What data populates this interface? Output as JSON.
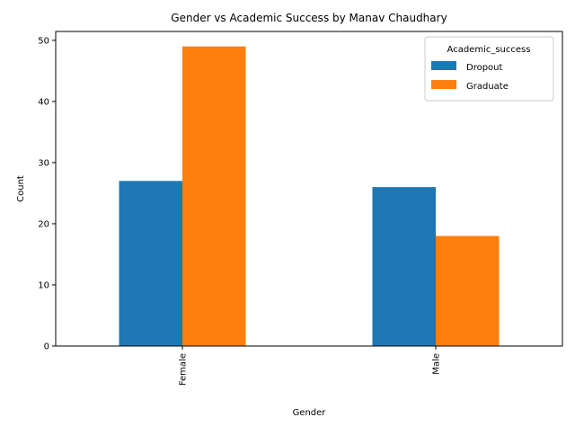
{
  "chart_data": {
    "type": "bar",
    "title": "Gender vs Academic Success by Manav Chaudhary",
    "xlabel": "Gender",
    "ylabel": "Count",
    "categories": [
      "Female",
      "Male"
    ],
    "series": [
      {
        "name": "Dropout",
        "values": [
          27,
          26
        ],
        "color": "#1f77b4"
      },
      {
        "name": "Graduate",
        "values": [
          49,
          18
        ],
        "color": "#ff7f0e"
      }
    ],
    "ylim": [
      0,
      51.45
    ],
    "yticks": [
      0,
      10,
      20,
      30,
      40,
      50
    ],
    "grid": false,
    "legend": {
      "title": "Academic_success",
      "placement": "top-right"
    }
  }
}
